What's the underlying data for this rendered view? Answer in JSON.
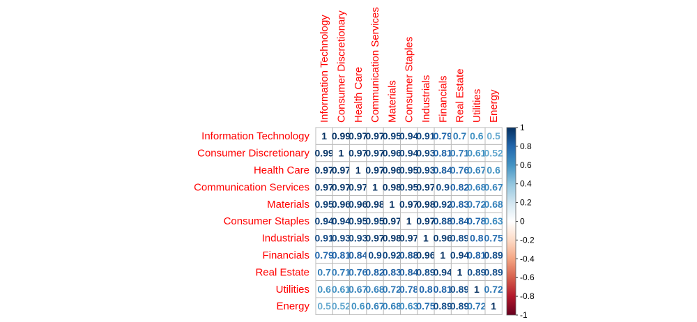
{
  "chart_data": {
    "type": "heatmap",
    "subtype": "correlation-matrix",
    "labels": [
      "Information Technology",
      "Consumer Discretionary",
      "Health Care",
      "Communication Services",
      "Materials",
      "Consumer Staples",
      "Industrials",
      "Financials",
      "Real Estate",
      "Utilities",
      "Energy"
    ],
    "cell_text": [
      [
        "1",
        "0.99",
        "0.97",
        "0.97",
        "0.95",
        "0.94",
        "0.91",
        "0.79",
        "0.7",
        "0.6",
        "0.5"
      ],
      [
        "0.99",
        "1",
        "0.97",
        "0.97",
        "0.96",
        "0.94",
        "0.93",
        "0.81",
        "0.71",
        "0.61",
        "0.52"
      ],
      [
        "0.97",
        "0.97",
        "1",
        "0.97",
        "0.96",
        "0.95",
        "0.93",
        "0.84",
        "0.76",
        "0.67",
        "0.6"
      ],
      [
        "0.97",
        "0.97",
        "0.97",
        "1",
        "0.98",
        "0.95",
        "0.97",
        "0.9",
        "0.82",
        "0.68",
        "0.67"
      ],
      [
        "0.95",
        "0.96",
        "0.96",
        "0.98",
        "1",
        "0.97",
        "0.98",
        "0.92",
        "0.83",
        "0.72",
        "0.68"
      ],
      [
        "0.94",
        "0.94",
        "0.95",
        "0.95",
        "0.97",
        "1",
        "0.97",
        "0.88",
        "0.84",
        "0.78",
        "0.63"
      ],
      [
        "0.91",
        "0.93",
        "0.93",
        "0.97",
        "0.98",
        "0.97",
        "1",
        "0.96",
        "0.89",
        "0.8",
        "0.75"
      ],
      [
        "0.79",
        "0.81",
        "0.84",
        "0.9",
        "0.92",
        "0.88",
        "0.96",
        "1",
        "0.94",
        "0.81",
        "0.89"
      ],
      [
        "0.7",
        "0.71",
        "0.76",
        "0.82",
        "0.83",
        "0.84",
        "0.89",
        "0.94",
        "1",
        "0.89",
        "0.89"
      ],
      [
        "0.6",
        "0.61",
        "0.67",
        "0.68",
        "0.72",
        "0.78",
        "0.8",
        "0.81",
        "0.89",
        "1",
        "0.72"
      ],
      [
        "0.5",
        "0.52",
        "0.6",
        "0.67",
        "0.68",
        "0.63",
        "0.75",
        "0.89",
        "0.89",
        "0.72",
        "1"
      ]
    ],
    "color_scale": {
      "min": -1,
      "max": 1,
      "ticks": [
        "1",
        "0.8",
        "0.6",
        "0.4",
        "0.2",
        "0",
        "-0.2",
        "-0.4",
        "-0.6",
        "-0.8",
        "-1"
      ],
      "stops": [
        "#67001F",
        "#B2182B",
        "#D6604D",
        "#F4A582",
        "#FDDBC7",
        "#FFFFFF",
        "#D1E5F0",
        "#92C5DE",
        "#4393C3",
        "#2166AC",
        "#053061"
      ]
    },
    "label_color": "#FF0000",
    "grid": true,
    "legend_placement": "right"
  }
}
